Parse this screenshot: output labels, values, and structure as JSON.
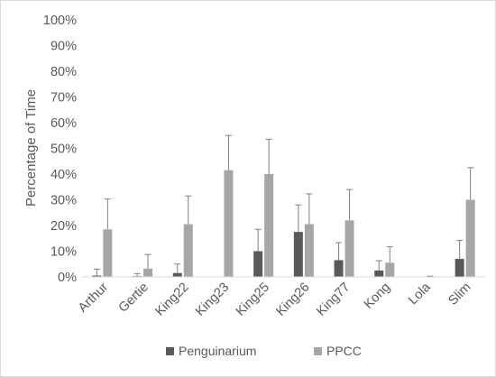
{
  "chart_data": {
    "type": "bar",
    "categories": [
      "Arthur",
      "Gertie",
      "King22",
      "King23",
      "King25",
      "King26",
      "King77",
      "Kong",
      "Lola",
      "Slim"
    ],
    "series": [
      {
        "name": "Penguinarium",
        "color": "#595959",
        "values": [
          0.5,
          0.3,
          1.5,
          0,
          10,
          17.5,
          6.5,
          2.5,
          0,
          7
        ],
        "error": [
          2.5,
          1.0,
          3.5,
          0,
          8.5,
          10.5,
          6.8,
          3.8,
          0,
          7.2
        ]
      },
      {
        "name": "PPCC",
        "color": "#a6a6a6",
        "values": [
          18.5,
          3.2,
          20.5,
          41.5,
          40,
          20.5,
          22,
          5.5,
          0,
          30
        ],
        "error": [
          11.8,
          5.5,
          11,
          13.5,
          13.5,
          11.8,
          12,
          6.2,
          0.3,
          12.5
        ]
      }
    ],
    "xlabel": "",
    "ylabel": "Percentage of Time",
    "ylim": [
      0,
      100
    ],
    "yticks": [
      "0%",
      "10%",
      "20%",
      "30%",
      "40%",
      "50%",
      "60%",
      "70%",
      "80%",
      "90%",
      "100%"
    ],
    "grid": false,
    "legend_position": "bottom"
  }
}
